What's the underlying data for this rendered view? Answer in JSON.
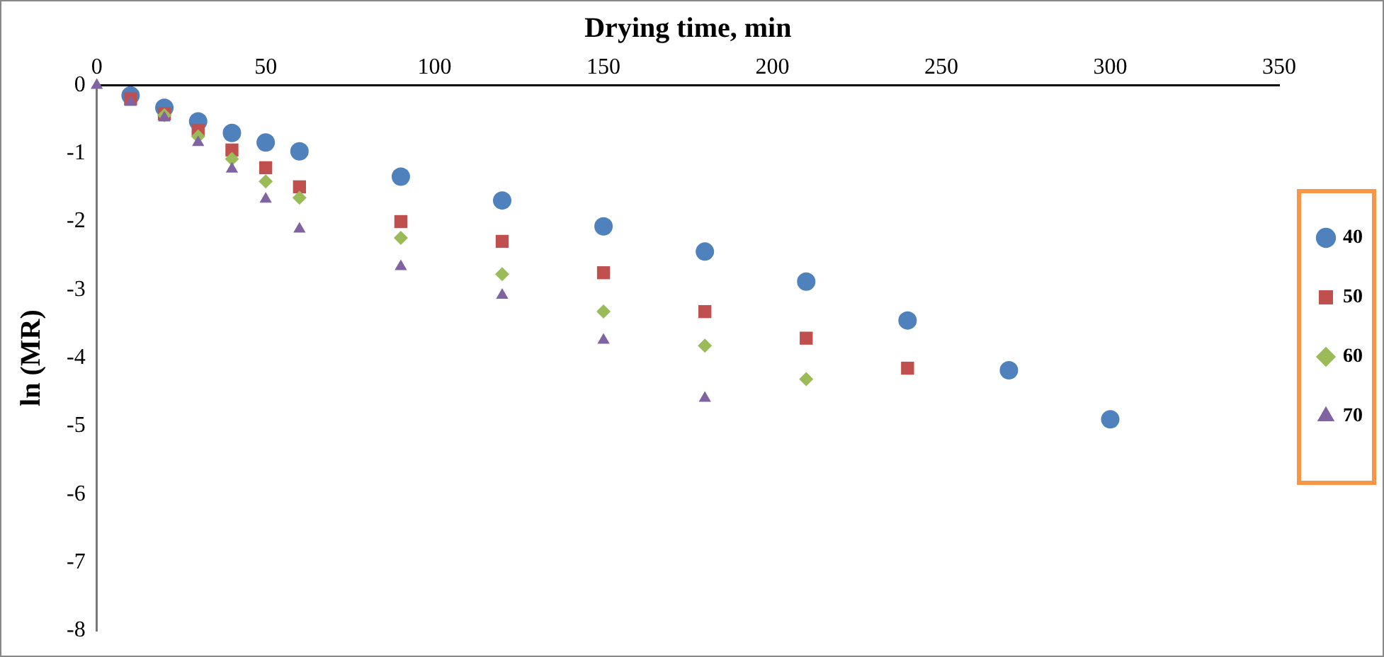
{
  "chart_data": {
    "type": "scatter",
    "xlabel": "Drying time, min",
    "ylabel": "ln (MR)",
    "xlim": [
      0,
      350
    ],
    "xticks": [
      0,
      50,
      100,
      150,
      200,
      250,
      300,
      350
    ],
    "ylim": [
      -8,
      0
    ],
    "yticks": [
      -8,
      -7,
      -6,
      -5,
      -4,
      -3,
      -2,
      -1,
      0
    ],
    "grid": false,
    "legend": "right",
    "series": [
      {
        "name": "40",
        "color": "#4f81bd",
        "marker": "circle",
        "x": [
          10,
          20,
          30,
          40,
          50,
          60,
          90,
          120,
          150,
          180,
          210,
          240,
          270,
          300
        ],
        "values": [
          -0.15,
          -0.33,
          -0.53,
          -0.7,
          -0.84,
          -0.97,
          -1.34,
          -1.69,
          -2.07,
          -2.44,
          -2.88,
          -3.45,
          -4.18,
          -4.9
        ]
      },
      {
        "name": "50",
        "color": "#c0504d",
        "marker": "square",
        "x": [
          10,
          20,
          30,
          40,
          50,
          60,
          90,
          120,
          150,
          180,
          210,
          240
        ],
        "values": [
          -0.2,
          -0.42,
          -0.66,
          -0.95,
          -1.21,
          -1.49,
          -2.0,
          -2.29,
          -2.75,
          -3.32,
          -3.71,
          -4.15
        ]
      },
      {
        "name": "60",
        "color": "#9bbb59",
        "marker": "diamond",
        "x": [
          20,
          30,
          40,
          50,
          60,
          90,
          120,
          150,
          180,
          210
        ],
        "values": [
          -0.44,
          -0.75,
          -1.08,
          -1.41,
          -1.65,
          -2.24,
          -2.77,
          -3.32,
          -3.82,
          -4.31
        ]
      },
      {
        "name": "70",
        "color": "#8064a2",
        "marker": "triangle",
        "x": [
          0,
          10,
          20,
          30,
          40,
          50,
          60,
          90,
          120,
          150,
          180
        ],
        "values": [
          0,
          -0.25,
          -0.48,
          -0.84,
          -1.23,
          -1.67,
          -2.11,
          -2.66,
          -3.08,
          -3.74,
          -4.59
        ]
      }
    ]
  }
}
